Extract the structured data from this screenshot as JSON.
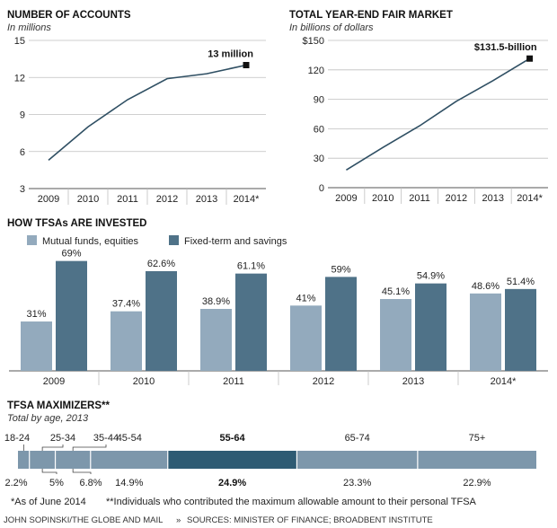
{
  "chart_data": [
    {
      "type": "line",
      "title": "NUMBER OF ACCOUNTS",
      "subtitle": "In millions",
      "x": [
        "2009",
        "2010",
        "2011",
        "2012",
        "2013",
        "2014*"
      ],
      "values": [
        5.3,
        8.0,
        10.2,
        11.9,
        12.3,
        13.0
      ],
      "yticks": [
        "3",
        "6",
        "9",
        "12",
        "15"
      ],
      "ylim": [
        3,
        15
      ],
      "annotation": "13 million",
      "colors": {
        "line": "#2f4f63",
        "marker": "#111111"
      }
    },
    {
      "type": "line",
      "title": "TOTAL YEAR-END FAIR MARKET",
      "subtitle": "In billions of dollars",
      "x": [
        "2009",
        "2010",
        "2011",
        "2012",
        "2013",
        "2014*"
      ],
      "values": [
        18,
        41,
        63,
        88,
        109,
        131.5
      ],
      "yticks": [
        "0",
        "30",
        "60",
        "90",
        "120",
        "$150"
      ],
      "ylim": [
        0,
        150
      ],
      "annotation": "$131.5-billion",
      "colors": {
        "line": "#2f4f63",
        "marker": "#111111"
      }
    },
    {
      "type": "bar",
      "title": "HOW TFSAs ARE INVESTED",
      "categories": [
        "2009",
        "2010",
        "2011",
        "2012",
        "2013",
        "2014*"
      ],
      "series": [
        {
          "name": "Mutual funds, equities",
          "values": [
            31,
            37.4,
            38.9,
            41,
            45.1,
            48.6
          ],
          "labels": [
            "31%",
            "37.4%",
            "38.9%",
            "41%",
            "45.1%",
            "48.6%"
          ],
          "color": "#93aabd"
        },
        {
          "name": "Fixed-term and savings",
          "values": [
            69,
            62.6,
            61.1,
            59,
            54.9,
            51.4
          ],
          "labels": [
            "69%",
            "62.6%",
            "61.1%",
            "59%",
            "54.9%",
            "51.4%"
          ],
          "color": "#4f7288"
        }
      ],
      "ylim": [
        0,
        75
      ],
      "legend": "top-left"
    },
    {
      "type": "bar",
      "title": "TFSA MAXIMIZERS**",
      "subtitle": "Total by age, 2013",
      "segments": [
        {
          "age": "18-24",
          "value": 2.2,
          "label": "2.2%"
        },
        {
          "age": "25-34",
          "value": 5,
          "label": "5%"
        },
        {
          "age": "35-44",
          "value": 6.8,
          "label": "6.8%"
        },
        {
          "age": "45-54",
          "value": 14.9,
          "label": "14.9%"
        },
        {
          "age": "55-64",
          "value": 24.9,
          "label": "24.9%",
          "highlight": true
        },
        {
          "age": "65-74",
          "value": 23.3,
          "label": "23.3%"
        },
        {
          "age": "75+",
          "value": 22.9,
          "label": "22.9%"
        }
      ],
      "colors": {
        "segment": "#7d97ab",
        "highlight": "#2e5b73"
      }
    }
  ],
  "footnotes": {
    "note1": "*As of June 2014",
    "note2": "**Individuals who contributed the maximum allowable amount to their personal TFSA"
  },
  "credit": "JOHN SOPINSKI/THE GLOBE AND MAIL",
  "credit_sep": "»",
  "sources": "SOURCES: MINISTER OF FINANCE; BROADBENT INSTITUTE"
}
